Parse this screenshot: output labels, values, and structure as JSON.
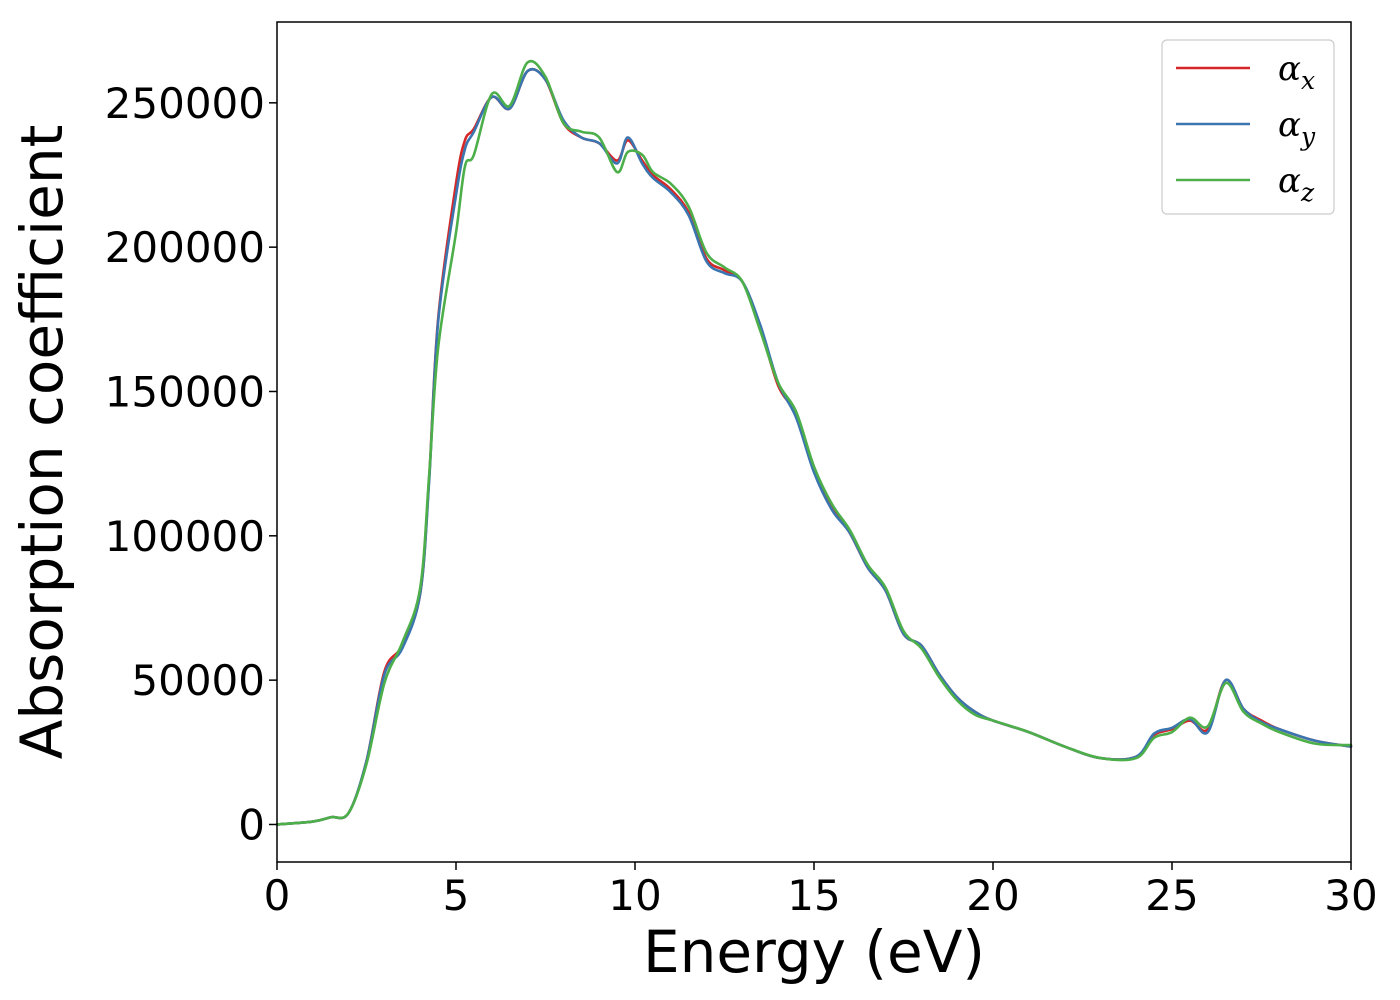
{
  "chart_data": {
    "type": "line",
    "title": "",
    "xlabel": "Energy (eV)",
    "ylabel": "Absorption coefficient",
    "xlim": [
      0,
      30
    ],
    "ylim": [
      -13000,
      278000
    ],
    "xticks": [
      0,
      5,
      10,
      15,
      20,
      25,
      30
    ],
    "xtick_labels": [
      "0",
      "5",
      "10",
      "15",
      "20",
      "25",
      "30"
    ],
    "yticks": [
      0,
      50000,
      100000,
      150000,
      200000,
      250000
    ],
    "ytick_labels": [
      "0",
      "50000",
      "100000",
      "150000",
      "200000",
      "250000"
    ],
    "grid": false,
    "legend_position": "top-right",
    "x": [
      0,
      1,
      1.5,
      2,
      2.5,
      3,
      3.5,
      4,
      4.25,
      4.5,
      5,
      5.25,
      5.5,
      6,
      6.5,
      7,
      7.5,
      8,
      8.5,
      9,
      9.5,
      9.8,
      10.2,
      10.5,
      11,
      11.5,
      12,
      12.5,
      13,
      13.5,
      14,
      14.5,
      15,
      15.5,
      16,
      16.5,
      17,
      17.5,
      18,
      18.5,
      19,
      19.5,
      20,
      21,
      22,
      23,
      24,
      24.5,
      25,
      25.5,
      26,
      26.5,
      27,
      27.5,
      28,
      29,
      30
    ],
    "series": [
      {
        "name": "α_x",
        "color": "#d62728",
        "values": [
          0,
          1000,
          2500,
          4000,
          22000,
          53000,
          62000,
          80000,
          120000,
          175000,
          222000,
          237000,
          241000,
          252000,
          248000,
          261000,
          258000,
          243000,
          238000,
          236000,
          230000,
          237000,
          230000,
          225000,
          220000,
          212000,
          196000,
          192000,
          188000,
          172000,
          152000,
          142000,
          123000,
          110000,
          101000,
          89000,
          81000,
          66000,
          62000,
          52000,
          44000,
          39000,
          36000,
          32000,
          27000,
          23000,
          23500,
          31000,
          33000,
          36000,
          33000,
          50000,
          40000,
          36000,
          33000,
          29000,
          27000
        ]
      },
      {
        "name": "α_y",
        "color": "#3b75af",
        "values": [
          0,
          1000,
          2500,
          4000,
          22000,
          52000,
          61000,
          80000,
          119000,
          174000,
          218000,
          234000,
          240000,
          252000,
          248000,
          261000,
          258000,
          244000,
          238000,
          236000,
          229000,
          238000,
          229000,
          224000,
          219000,
          211000,
          195000,
          191000,
          188000,
          173000,
          153000,
          141000,
          122000,
          109000,
          101000,
          89000,
          81000,
          66000,
          62000,
          52000,
          44000,
          39000,
          36000,
          32000,
          27000,
          23000,
          23500,
          31500,
          33500,
          36500,
          32000,
          50000,
          40000,
          35500,
          33000,
          29000,
          27000
        ]
      },
      {
        "name": "α_z",
        "color": "#4daf4a",
        "values": [
          0,
          1000,
          2500,
          4000,
          21000,
          49000,
          63000,
          82000,
          121000,
          165000,
          205000,
          228000,
          232000,
          253000,
          249000,
          264000,
          259000,
          243000,
          240000,
          238000,
          226000,
          233000,
          232000,
          226000,
          222000,
          214000,
          198000,
          193000,
          188000,
          171000,
          153000,
          143000,
          124000,
          111000,
          102000,
          90000,
          82000,
          67000,
          61000,
          51000,
          43000,
          38000,
          36000,
          32000,
          27000,
          23000,
          23000,
          30000,
          32000,
          37000,
          34000,
          49000,
          39000,
          35000,
          32000,
          28000,
          27500
        ]
      }
    ]
  },
  "legend": {
    "entries": [
      {
        "base": "α",
        "sub": "x"
      },
      {
        "base": "α",
        "sub": "y"
      },
      {
        "base": "α",
        "sub": "z"
      }
    ]
  }
}
